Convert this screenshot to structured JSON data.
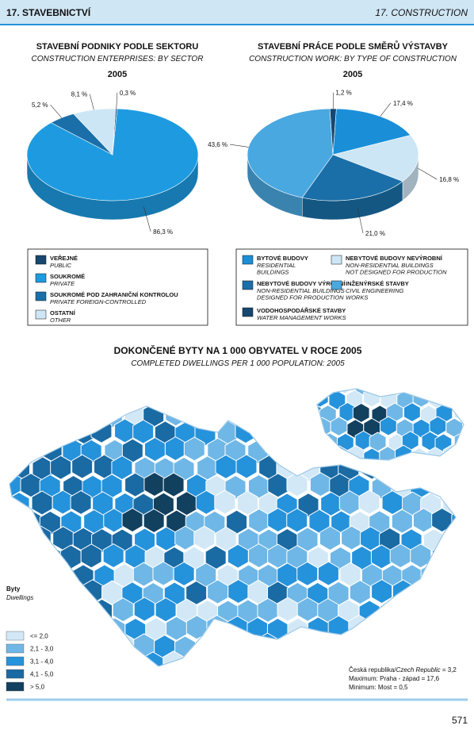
{
  "header": {
    "left": "17. STAVEBNICTVÍ",
    "right": "17. CONSTRUCTION"
  },
  "chart_data": [
    {
      "type": "pie",
      "title": "STAVEBNÍ PODNIKY PODLE SEKTORU",
      "subtitle": "CONSTRUCTION ENTERPRISES: BY SECTOR",
      "year": "2005",
      "categories": [
        "VEŘEJNÉ",
        "SOUKROMÉ",
        "SOUKROMÉ POD ZAHRANIČNÍ KONTROLOU",
        "OSTATNÍ"
      ],
      "categories_en": [
        [
          "PUBLIC"
        ],
        [
          "PRIVATE"
        ],
        [
          "PRIVATE FOREIGN-CONTROLLED"
        ],
        [
          "OTHER"
        ]
      ],
      "values": [
        0.3,
        86.3,
        5.2,
        8.1
      ],
      "value_labels": [
        "0,3 %",
        "86,3 %",
        "5,2 %",
        "8,1 %"
      ],
      "colors": [
        "#17476e",
        "#1e9be0",
        "#1a6fa8",
        "#cde6f5"
      ]
    },
    {
      "type": "pie",
      "title": "STAVEBNÍ PRÁCE PODLE SMĚRŮ VÝSTAVBY",
      "subtitle": "CONSTRUCTION WORK: BY TYPE OF CONSTRUCTION",
      "year": "2005",
      "categories": [
        "BYTOVÉ BUDOVY",
        "NEBYTOVÉ BUDOVY NEVÝROBNÍ",
        "NEBYTOVÉ BUDOVY VÝROBNÍ",
        "INŽENÝRSKÉ STAVBY",
        "VODOHOSPODÁŘSKÉ STAVBY"
      ],
      "categories_en": [
        [
          "RESIDENTIAL",
          "BUILDINGS"
        ],
        [
          "NON-RESIDENTIAL BUILDINGS",
          "NOT DESIGNED FOR PRODUCTION"
        ],
        [
          "NON-RESIDENTIAL BUILDINGS",
          "DESIGNED FOR PRODUCTION"
        ],
        [
          "CIVIL ENGINEERING",
          "WORKS"
        ],
        [
          "WATER MANAGEMENT WORKS"
        ]
      ],
      "values": [
        17.4,
        16.8,
        21.0,
        43.6,
        1.2
      ],
      "value_labels": [
        "17,4 %",
        "16,8 %",
        "21,0 %",
        "43,6 %",
        "1,2 %"
      ],
      "colors": [
        "#1a8fd8",
        "#cde6f5",
        "#1a6fa8",
        "#4aa8e0",
        "#17476e"
      ]
    }
  ],
  "map": {
    "title": "DOKONČENÉ BYTY NA 1 000 OBYVATEL V ROCE 2005",
    "subtitle": "COMPLETED DWELLINGS PER 1 000 POPULATION: 2005",
    "legend_title": "Byty",
    "legend_subtitle": "Dwellings",
    "classes": [
      "<= 2,0",
      "2,1 - 3,0",
      "3,1 - 4,0",
      "4,1 - 5,0",
      "> 5,0"
    ],
    "colors": [
      "#d2e8f6",
      "#6fb7e6",
      "#2592dc",
      "#1a6aa3",
      "#12405f"
    ],
    "notes": {
      "cz_label": "Česká republika/",
      "cz_label_en": "Czech Republic",
      "cz_value": "= 3,2",
      "max": "Maximum: Praha - západ = 17,6",
      "min": "Minimum: Most = 0,5"
    }
  },
  "page_number": "571"
}
